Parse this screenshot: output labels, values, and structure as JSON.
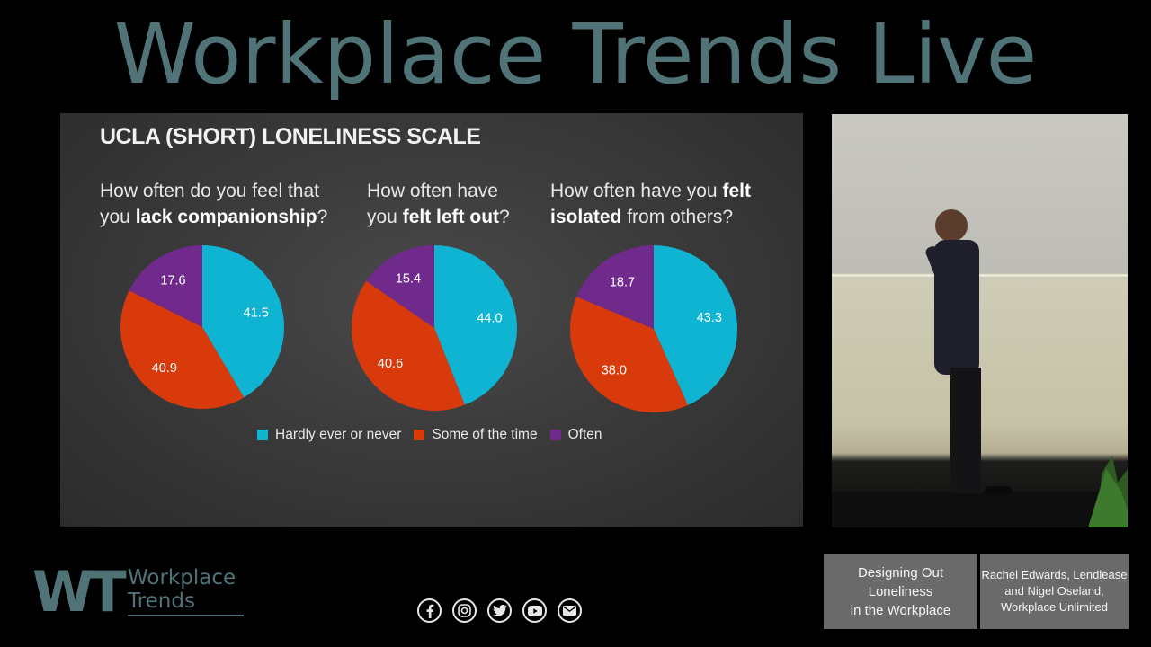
{
  "header": {
    "title": "Workplace Trends Live"
  },
  "slide": {
    "heading": "UCLA (SHORT) LONELINESS SCALE",
    "questions": [
      {
        "line1": "How often do you feel that",
        "line2_pre": "you ",
        "line2_bold": "lack companionship",
        "line2_post": "?"
      },
      {
        "line1": "How often have",
        "line2_pre": "you ",
        "line2_bold": "felt left out",
        "line2_post": "?"
      },
      {
        "line1_pre": "How often have you ",
        "line1_bold": "felt",
        "line2_bold": "isolated",
        "line2_post": " from others?"
      }
    ]
  },
  "chart_data": [
    {
      "type": "pie",
      "categories": [
        "Hardly ever or never",
        "Some of the time",
        "Often"
      ],
      "values": [
        41.5,
        40.9,
        17.6
      ],
      "labels": [
        "41.5",
        "40.9",
        "17.6"
      ],
      "colors": [
        "#0fb4d2",
        "#d83a0c",
        "#6f2a8c"
      ],
      "legend": "bottom"
    },
    {
      "type": "pie",
      "categories": [
        "Hardly ever or never",
        "Some of the time",
        "Often"
      ],
      "values": [
        44.0,
        40.6,
        15.4
      ],
      "labels": [
        "44.0",
        "40.6",
        "15.4"
      ],
      "colors": [
        "#0fb4d2",
        "#d83a0c",
        "#6f2a8c"
      ],
      "legend": "bottom"
    },
    {
      "type": "pie",
      "categories": [
        "Hardly ever or never",
        "Some of the time",
        "Often"
      ],
      "values": [
        43.3,
        38.0,
        18.7
      ],
      "labels": [
        "43.3",
        "38.0",
        "18.7"
      ],
      "colors": [
        "#0fb4d2",
        "#d83a0c",
        "#6f2a8c"
      ],
      "legend": "bottom"
    }
  ],
  "legend": {
    "items": [
      {
        "label": "Hardly ever or never",
        "color": "#0fb4d2"
      },
      {
        "label": "Some of the time",
        "color": "#d83a0c"
      },
      {
        "label": "Often",
        "color": "#6f2a8c"
      }
    ]
  },
  "footer": {
    "logo_mark": "WT",
    "logo_line1": "Workplace",
    "logo_line2": "Trends",
    "socials": [
      {
        "icon": "facebook-icon",
        "glyph": "f"
      },
      {
        "icon": "instagram-icon",
        "glyph": "◎"
      },
      {
        "icon": "twitter-icon",
        "glyph": "t"
      },
      {
        "icon": "youtube-icon",
        "glyph": "▶"
      },
      {
        "icon": "email-icon",
        "glyph": "✉"
      }
    ],
    "session": [
      "Designing Out",
      "Loneliness",
      "in the Workplace"
    ],
    "speakers": [
      "Rachel Edwards, Lendlease",
      "and Nigel Oseland,",
      "Workplace Unlimited"
    ]
  }
}
